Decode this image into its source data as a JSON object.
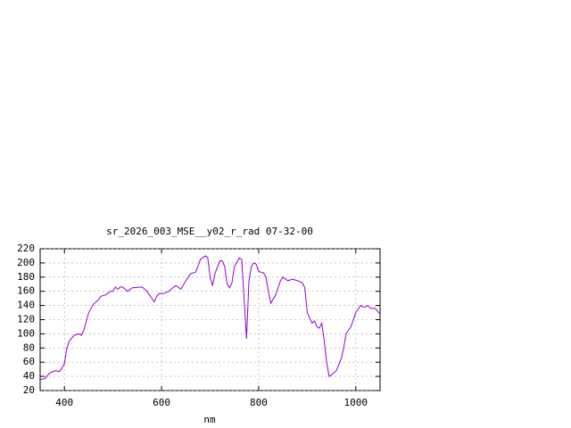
{
  "chart_data": {
    "type": "line",
    "title": "sr_2026_003_MSE__y02_r_rad 07-32-00",
    "x_label": "nm",
    "x": [
      350,
      360,
      370,
      380,
      390,
      395,
      400,
      405,
      410,
      420,
      430,
      435,
      440,
      450,
      460,
      470,
      475,
      485,
      495,
      500,
      505,
      510,
      515,
      520,
      530,
      540,
      560,
      570,
      580,
      585,
      590,
      595,
      605,
      615,
      625,
      630,
      640,
      650,
      660,
      670,
      675,
      680,
      690,
      695,
      700,
      705,
      710,
      720,
      725,
      730,
      735,
      740,
      745,
      750,
      760,
      765,
      770,
      775,
      780,
      785,
      790,
      795,
      800,
      810,
      815,
      820,
      825,
      835,
      845,
      850,
      860,
      870,
      880,
      890,
      895,
      900,
      910,
      915,
      920,
      925,
      930,
      935,
      940,
      945,
      950,
      960,
      970,
      975,
      980,
      990,
      1000,
      1010,
      1015,
      1020,
      1025,
      1030,
      1040,
      1050
    ],
    "series": [
      {
        "color": "#9400d3",
        "values": [
          35,
          37,
          45,
          48,
          47,
          52,
          58,
          80,
          90,
          98,
          100,
          98,
          105,
          130,
          142,
          148,
          153,
          155,
          160,
          160,
          166,
          163,
          166,
          166,
          160,
          165,
          166,
          160,
          150,
          145,
          153,
          157,
          157,
          160,
          166,
          168,
          163,
          175,
          185,
          187,
          195,
          205,
          210,
          208,
          180,
          168,
          185,
          203,
          203,
          195,
          170,
          165,
          172,
          195,
          207,
          205,
          150,
          93,
          175,
          195,
          200,
          198,
          188,
          186,
          180,
          160,
          143,
          155,
          175,
          180,
          175,
          177,
          175,
          172,
          165,
          130,
          115,
          118,
          110,
          108,
          115,
          90,
          60,
          40,
          42,
          48,
          65,
          80,
          100,
          110,
          130,
          140,
          138,
          138,
          140,
          136,
          136,
          128
        ]
      }
    ],
    "xlim": [
      350,
      1050
    ],
    "xticks": [
      400,
      600,
      800,
      1000
    ],
    "ylim": [
      20,
      220
    ],
    "yticks": [
      20,
      40,
      60,
      80,
      100,
      120,
      140,
      160,
      180,
      200,
      220
    ],
    "grid": true
  }
}
